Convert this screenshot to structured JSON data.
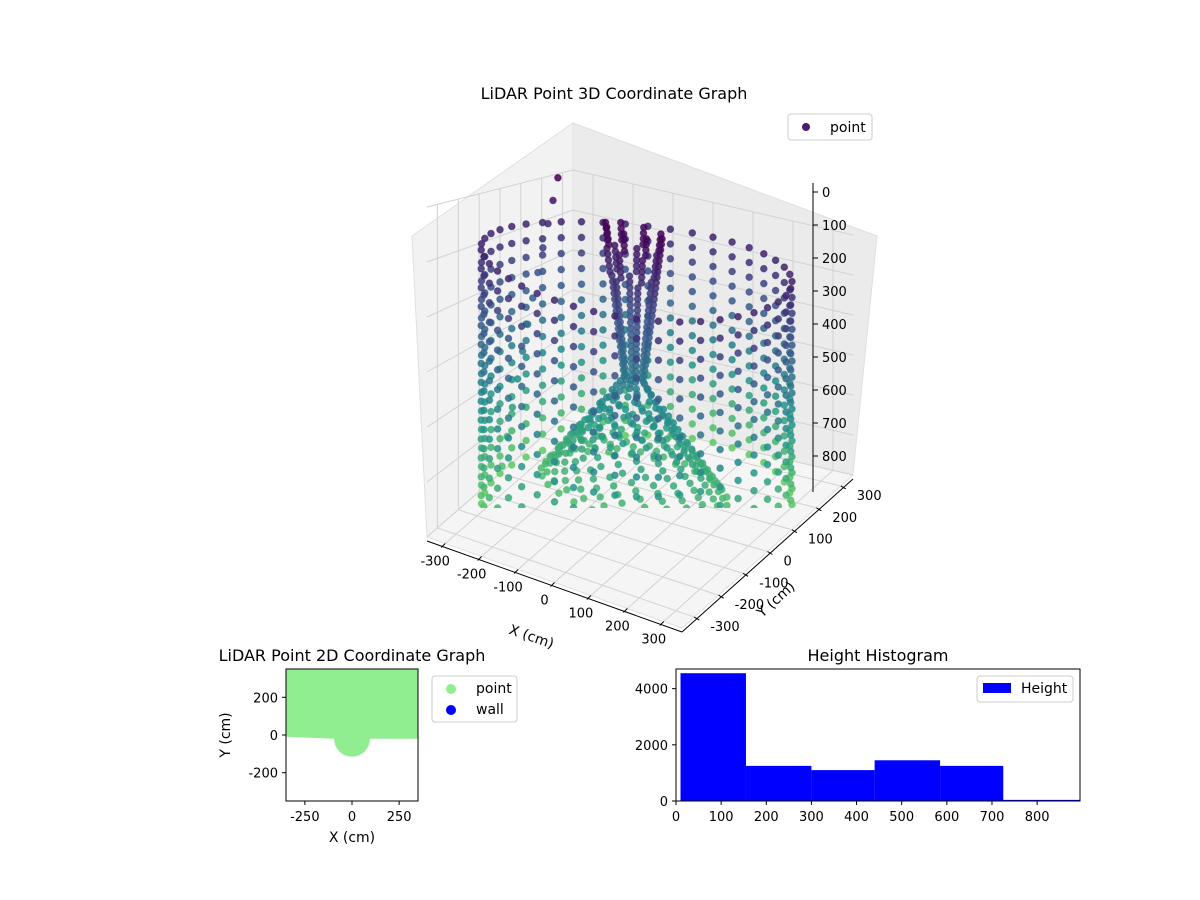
{
  "chart_data": [
    {
      "type": "scatter3d",
      "title": "LiDAR Point 3D Coordinate Graph",
      "xlabel": "X (cm)",
      "ylabel": "Y (cm)",
      "zlabel": "",
      "legend": [
        "point"
      ],
      "legend_placement": "top-right",
      "xlim": [
        -350,
        350
      ],
      "ylim": [
        -350,
        350
      ],
      "zlim": [
        0,
        900
      ],
      "xticks": [
        "-300",
        "-200",
        "-100",
        "0",
        "100",
        "200",
        "300"
      ],
      "yticks": [
        "-300",
        "-200",
        "-100",
        "0",
        "100",
        "200",
        "300"
      ],
      "zticks": [
        "0",
        "100",
        "200",
        "300",
        "400",
        "500",
        "600",
        "700",
        "800"
      ],
      "colormap": [
        "#440154",
        "#3b528b",
        "#21918c",
        "#5ec962"
      ],
      "structure": {
        "wall_radius": 350,
        "wall_column_count": 44,
        "wall_height_range": [
          0,
          800
        ],
        "center_object_height_range": [
          80,
          900
        ],
        "stray_point_count": 12
      }
    },
    {
      "type": "scatter",
      "title": "LiDAR Point 2D Coordinate Graph",
      "xlabel": "X (cm)",
      "ylabel": "Y (cm)",
      "xlim": [
        -350,
        350
      ],
      "ylim": [
        -350,
        350
      ],
      "xticks": [
        "-250",
        "0",
        "250"
      ],
      "yticks": [
        "200",
        "0",
        "-200"
      ],
      "legend_placement": "outside-right",
      "series": [
        {
          "name": "point",
          "color": "#90ee90",
          "region": {
            "y_min": -20,
            "y_max": 350,
            "semicircle_radius": 95,
            "semicircle_center": [
              0,
              -20
            ]
          }
        },
        {
          "name": "wall",
          "color": "#0000ff",
          "values": []
        }
      ]
    },
    {
      "type": "histogram",
      "title": "Height Histogram",
      "xlabel": "",
      "ylabel": "",
      "legend": [
        "Height"
      ],
      "legend_placement": "top-right",
      "color": "#0000ff",
      "xlim": [
        0,
        895
      ],
      "ylim": [
        0,
        4700
      ],
      "xticks": [
        "0",
        "100",
        "200",
        "300",
        "400",
        "500",
        "600",
        "700",
        "800"
      ],
      "yticks": [
        "0",
        "2000",
        "4000"
      ],
      "bins": [
        {
          "start": 10,
          "end": 155,
          "count": 4550
        },
        {
          "start": 155,
          "end": 300,
          "count": 1250
        },
        {
          "start": 300,
          "end": 440,
          "count": 1100
        },
        {
          "start": 440,
          "end": 585,
          "count": 1450
        },
        {
          "start": 585,
          "end": 725,
          "count": 1250
        },
        {
          "start": 725,
          "end": 895,
          "count": 40
        }
      ]
    }
  ]
}
